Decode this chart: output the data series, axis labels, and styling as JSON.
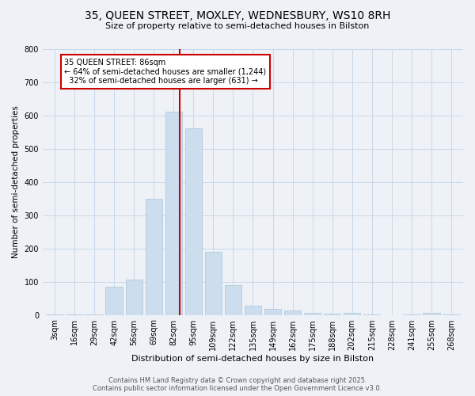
{
  "title": "35, QUEEN STREET, MOXLEY, WEDNESBURY, WS10 8RH",
  "subtitle": "Size of property relative to semi-detached houses in Bilston",
  "xlabel": "Distribution of semi-detached houses by size in Bilston",
  "ylabel": "Number of semi-detached properties",
  "bar_color": "#ccdded",
  "bar_edge_color": "#aac4d8",
  "bin_labels": [
    "3sqm",
    "16sqm",
    "29sqm",
    "42sqm",
    "56sqm",
    "69sqm",
    "82sqm",
    "95sqm",
    "109sqm",
    "122sqm",
    "135sqm",
    "149sqm",
    "162sqm",
    "175sqm",
    "188sqm",
    "202sqm",
    "215sqm",
    "228sqm",
    "241sqm",
    "255sqm",
    "268sqm"
  ],
  "bin_values": [
    2,
    2,
    2,
    85,
    105,
    350,
    610,
    560,
    190,
    90,
    27,
    18,
    13,
    5,
    3,
    6,
    1,
    0,
    1,
    5,
    2
  ],
  "property_label": "35 QUEEN STREET: 86sqm",
  "pct_smaller": 64,
  "n_smaller": 1244,
  "pct_larger": 32,
  "n_larger": 631,
  "vline_color": "#cc0000",
  "annotation_box_color": "#ffffff",
  "annotation_box_edge": "#cc0000",
  "grid_color": "#c8d8e8",
  "ylim": [
    0,
    800
  ],
  "yticks": [
    0,
    100,
    200,
    300,
    400,
    500,
    600,
    700,
    800
  ],
  "footer_text": "Contains HM Land Registry data © Crown copyright and database right 2025.\nContains public sector information licensed under the Open Government Licence v3.0.",
  "background_color": "#eef2f7"
}
